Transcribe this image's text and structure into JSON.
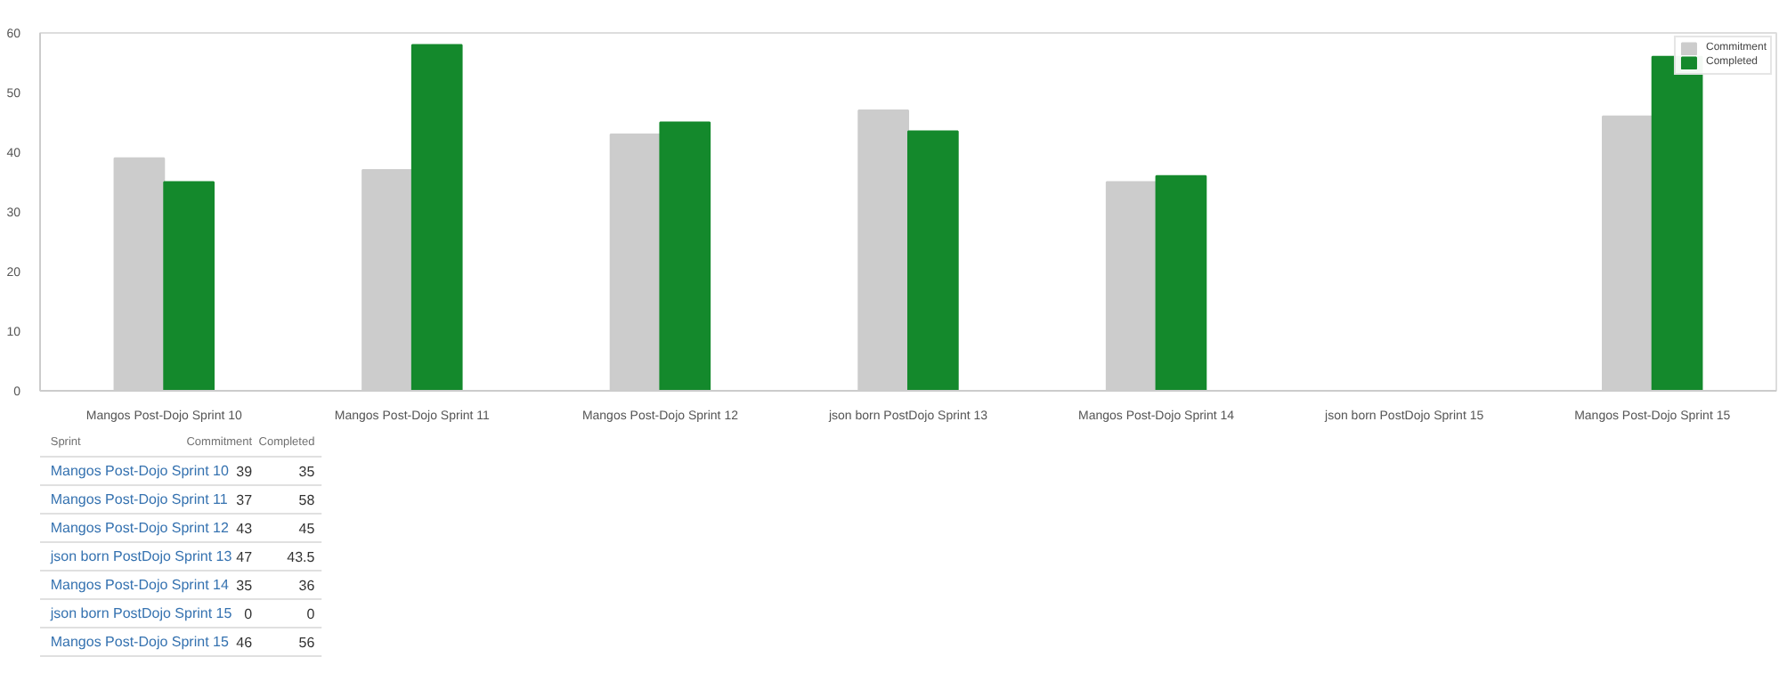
{
  "chart_data": [
    {
      "type": "bar",
      "categories": [
        "Mangos Post-Dojo Sprint 10",
        "Mangos Post-Dojo Sprint 11",
        "Mangos Post-Dojo Sprint 12",
        "json born PostDojo Sprint 13",
        "Mangos Post-Dojo Sprint 14",
        "json born PostDojo Sprint 15",
        "Mangos Post-Dojo Sprint 15"
      ],
      "series": [
        {
          "name": "Commitment",
          "color": "#cccccc",
          "values": [
            39,
            37,
            43,
            47,
            35,
            0,
            46
          ]
        },
        {
          "name": "Completed",
          "color": "#14892c",
          "values": [
            35,
            58,
            45,
            43.5,
            36,
            0,
            56
          ]
        }
      ],
      "ylim": [
        0,
        60
      ],
      "yticks": [
        0,
        10,
        20,
        30,
        40,
        50,
        60
      ],
      "grid": false,
      "legend": "top right"
    },
    {
      "type": "heatmap",
      "categories": [
        "Commitment",
        "Completed"
      ],
      "y_categories": [
        "Mangos Post-Dojo Sprint 10",
        "Mangos Post-Dojo Sprint 11",
        "Mangos Post-Dojo Sprint 12",
        "json born PostDojo Sprint 13",
        "Mangos Post-Dojo Sprint 14",
        "json born PostDojo Sprint 15",
        "Mangos Post-Dojo Sprint 15"
      ],
      "cells": [
        [
          39,
          35
        ],
        [
          37,
          58
        ],
        [
          43,
          45
        ],
        [
          47,
          43.5
        ],
        [
          35,
          36
        ],
        [
          0,
          0
        ],
        [
          46,
          56
        ]
      ],
      "data_labels": true,
      "annotations": [
        "Sprint"
      ]
    }
  ]
}
